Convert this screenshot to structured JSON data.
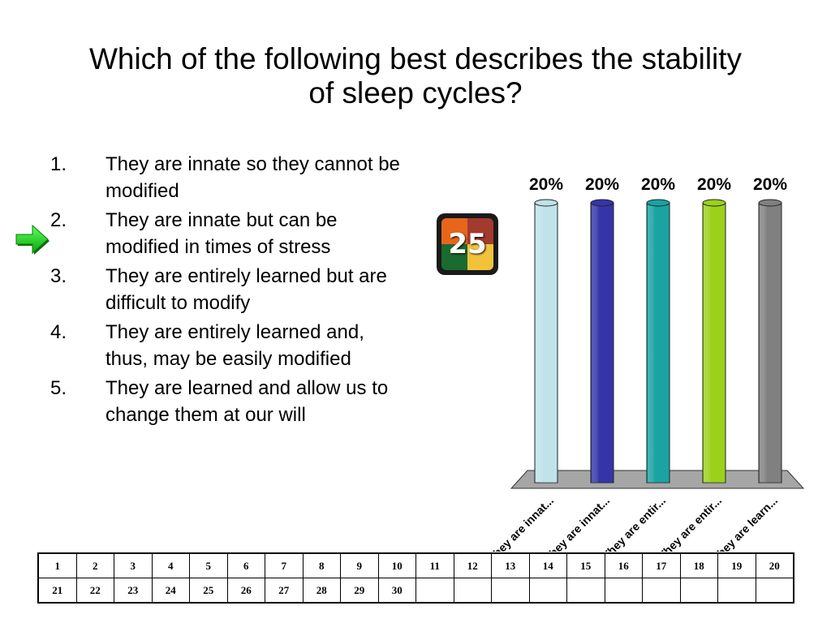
{
  "slide": {
    "title_line1": "Which of the following best describes the stability",
    "title_line2": "of sleep cycles?"
  },
  "options": [
    {
      "num": "1.",
      "text": "They are innate so they cannot be modified"
    },
    {
      "num": "2.",
      "text": "They are innate but can be modified in times of stress"
    },
    {
      "num": "3.",
      "text": "They are entirely learned but are difficult to modify"
    },
    {
      "num": "4.",
      "text": "They are entirely learned and, thus, may be easily modified"
    },
    {
      "num": "5.",
      "text": "They are learned and allow us to change them at our will"
    }
  ],
  "indicator": {
    "icon": "green-arrow-icon",
    "points_to_option": 2,
    "color": "#2ecc40"
  },
  "timer": {
    "value": "25",
    "icon": "countdown-timer-icon"
  },
  "chart_data": {
    "type": "bar",
    "categories": [
      "They are innat...",
      "They are innat...",
      "They are entir...",
      "They are entir...",
      "They are learn..."
    ],
    "values": [
      20,
      20,
      20,
      20,
      20
    ],
    "value_labels": [
      "20%",
      "20%",
      "20%",
      "20%",
      "20%"
    ],
    "colors": [
      "#bfe3e8",
      "#3535a8",
      "#1aa3a3",
      "#9bd11a",
      "#808080"
    ],
    "ylim": [
      0,
      20
    ],
    "legend": "none",
    "grid": false
  },
  "response_grid": {
    "row1": [
      "1",
      "2",
      "3",
      "4",
      "5",
      "6",
      "7",
      "8",
      "9",
      "10",
      "11",
      "12",
      "13",
      "14",
      "15",
      "16",
      "17",
      "18",
      "19",
      "20"
    ],
    "row2": [
      "21",
      "22",
      "23",
      "24",
      "25",
      "26",
      "27",
      "28",
      "29",
      "30",
      "",
      "",
      "",
      "",
      "",
      "",
      "",
      "",
      "",
      ""
    ]
  }
}
